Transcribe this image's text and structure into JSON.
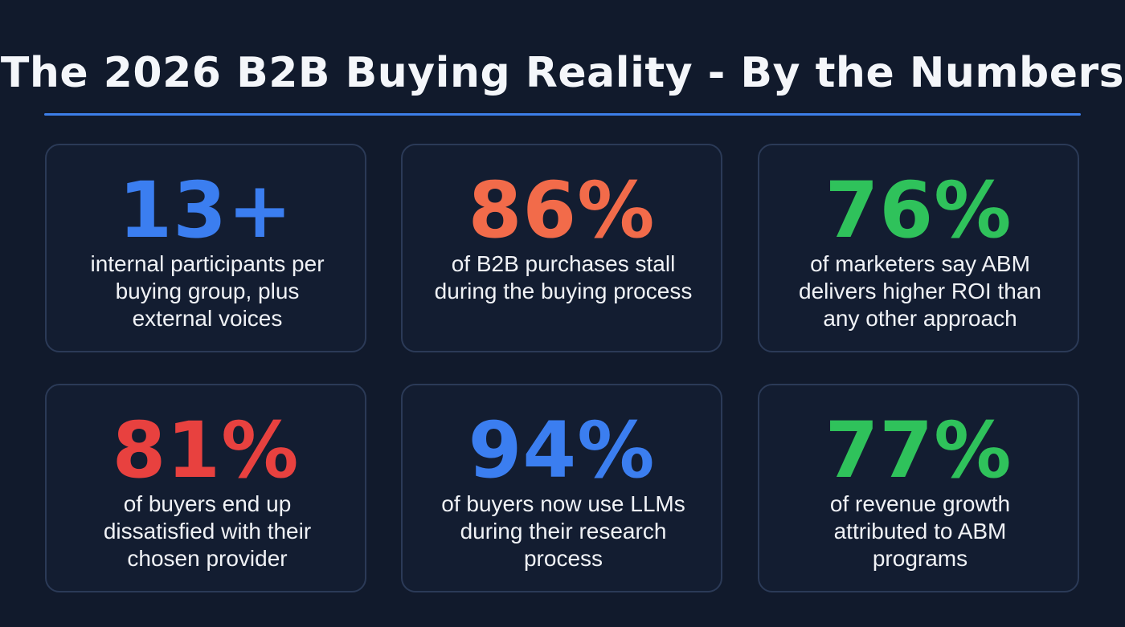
{
  "title": "The 2026 B2B Buying Reality - By the Numbers",
  "colors": {
    "background": "#111a2c",
    "divider": "#3d7ee8",
    "card_border": "#2b3a57",
    "blue": "#3b7ef0",
    "orange": "#f26b4a",
    "green": "#2fc25b",
    "red": "#e8413f"
  },
  "stats": [
    {
      "value": "13+",
      "color": "#3b7ef0",
      "lines": [
        "internal participants per",
        "buying group, plus",
        "external voices"
      ]
    },
    {
      "value": "86%",
      "color": "#f26b4a",
      "lines": [
        "of B2B purchases stall",
        "during the buying process"
      ]
    },
    {
      "value": "76%",
      "color": "#2fc25b",
      "lines": [
        "of marketers say ABM",
        "delivers higher ROI than",
        "any other approach"
      ]
    },
    {
      "value": "81%",
      "color": "#e8413f",
      "lines": [
        "of buyers end up",
        "dissatisfied with their",
        "chosen provider"
      ]
    },
    {
      "value": "94%",
      "color": "#3b7ef0",
      "lines": [
        "of buyers now use LLMs",
        "during their research",
        "process"
      ]
    },
    {
      "value": "77%",
      "color": "#2fc25b",
      "lines": [
        "of revenue growth",
        "attributed to ABM",
        "programs"
      ]
    }
  ]
}
